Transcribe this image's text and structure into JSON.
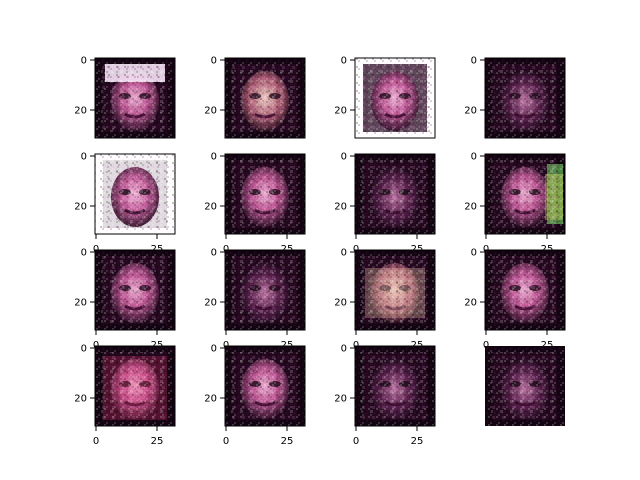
{
  "figure": {
    "layout": {
      "rows": 4,
      "cols": 4
    },
    "axes_style": {
      "spine_color": "#000000",
      "background": "#ffffff"
    },
    "panels": [
      {
        "row": 0,
        "col": 0,
        "content": "generated-face-image",
        "theme": "pink-white-hat",
        "has_border": true,
        "x_ticks": [],
        "y_ticks": [
          "0",
          "20"
        ]
      },
      {
        "row": 0,
        "col": 1,
        "content": "generated-face-image",
        "theme": "pink-smile",
        "has_border": true,
        "x_ticks": [],
        "y_ticks": [
          "0",
          "20"
        ]
      },
      {
        "row": 0,
        "col": 2,
        "content": "generated-face-image",
        "theme": "purple-male",
        "has_border": true,
        "x_ticks": [],
        "y_ticks": [
          "0",
          "20"
        ]
      },
      {
        "row": 0,
        "col": 3,
        "content": "generated-face-image",
        "theme": "dark-tilted",
        "has_border": true,
        "x_ticks": [],
        "y_ticks": [
          "0",
          "20"
        ]
      },
      {
        "row": 1,
        "col": 0,
        "content": "generated-face-image",
        "theme": "bright-white-bg",
        "has_border": true,
        "x_ticks": [
          "0",
          "25"
        ],
        "y_ticks": [
          "0",
          "20"
        ]
      },
      {
        "row": 1,
        "col": 1,
        "content": "generated-face-image",
        "theme": "pink-mottled",
        "has_border": true,
        "x_ticks": [
          "0",
          "25"
        ],
        "y_ticks": [
          "0",
          "20"
        ]
      },
      {
        "row": 1,
        "col": 2,
        "content": "generated-face-image",
        "theme": "dark-hair",
        "has_border": true,
        "x_ticks": [
          "0",
          "25"
        ],
        "y_ticks": [
          "0",
          "20"
        ]
      },
      {
        "row": 1,
        "col": 3,
        "content": "generated-face-image",
        "theme": "green-yellow-right",
        "has_border": true,
        "x_ticks": [
          "0",
          "25"
        ],
        "y_ticks": [
          "0",
          "20"
        ]
      },
      {
        "row": 2,
        "col": 0,
        "content": "generated-face-image",
        "theme": "purple-blur",
        "has_border": true,
        "x_ticks": [
          "0",
          "25"
        ],
        "y_ticks": [
          "0",
          "20"
        ]
      },
      {
        "row": 2,
        "col": 1,
        "content": "generated-face-image",
        "theme": "dark-long-hair",
        "has_border": true,
        "x_ticks": [
          "0",
          "25"
        ],
        "y_ticks": [
          "0",
          "20"
        ]
      },
      {
        "row": 2,
        "col": 2,
        "content": "generated-face-image",
        "theme": "beige-face",
        "has_border": true,
        "x_ticks": [
          "0",
          "25"
        ],
        "y_ticks": [
          "0",
          "20"
        ]
      },
      {
        "row": 2,
        "col": 3,
        "content": "generated-face-image",
        "theme": "pink-face",
        "has_border": true,
        "x_ticks": [
          "0",
          "25"
        ],
        "y_ticks": [
          "0",
          "20"
        ]
      },
      {
        "row": 3,
        "col": 0,
        "content": "generated-face-image",
        "theme": "red-pink",
        "has_border": true,
        "x_ticks": [
          "0",
          "25"
        ],
        "y_ticks": [
          "0",
          "20"
        ]
      },
      {
        "row": 3,
        "col": 1,
        "content": "generated-face-image",
        "theme": "light-purple",
        "has_border": true,
        "x_ticks": [
          "0",
          "25"
        ],
        "y_ticks": [
          "0",
          "20"
        ]
      },
      {
        "row": 3,
        "col": 2,
        "content": "generated-face-image",
        "theme": "dark-woman",
        "has_border": true,
        "x_ticks": [
          "0",
          "25"
        ],
        "y_ticks": [
          "0",
          "20"
        ]
      },
      {
        "row": 3,
        "col": 3,
        "content": "generated-face-image",
        "theme": "pink-dark",
        "has_border": false,
        "x_ticks": [],
        "y_ticks": []
      }
    ]
  }
}
